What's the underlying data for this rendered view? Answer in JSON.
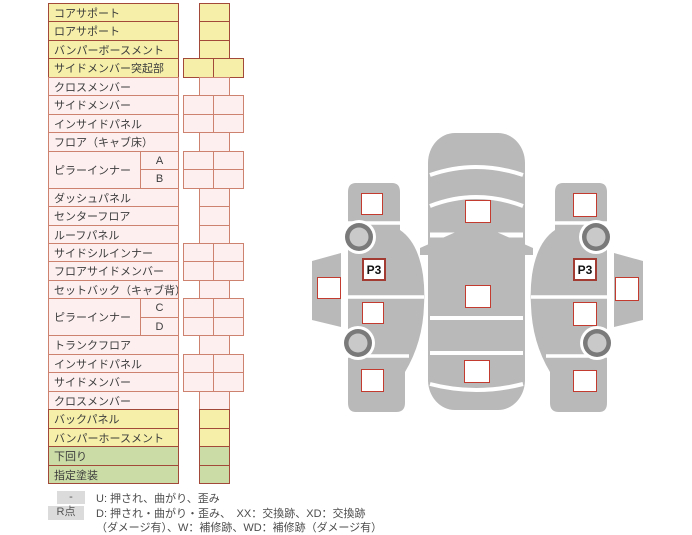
{
  "colors": {
    "yellow": "#f6efa9",
    "pink": "#fdeff0",
    "green": "#cbdca6",
    "border_dark": "#a3493a",
    "border_light": "#cd8270",
    "box_red": "#c23b2e",
    "car_gray": "#b9b9b9",
    "wheel_ring": "#7a7a7a",
    "wheel_hub": "#c9c9c9"
  },
  "table": {
    "rows": [
      {
        "label": "コアサポート",
        "color": "yellow",
        "cells": "single"
      },
      {
        "label": "ロアサポート",
        "color": "yellow",
        "cells": "single"
      },
      {
        "label": "バンパーボースメント",
        "color": "yellow",
        "cells": "single"
      },
      {
        "label": "サイドメンバー突起部",
        "color": "yellow",
        "cells": "double"
      },
      {
        "label": "クロスメンバー",
        "color": "pink",
        "cells": "single"
      },
      {
        "label": "サイドメンバー",
        "color": "pink",
        "cells": "double"
      },
      {
        "label": "インサイドパネル",
        "color": "pink",
        "cells": "double"
      },
      {
        "label": "フロア（キャブ床）",
        "color": "pink",
        "cells": "single"
      },
      {
        "label": "ピラーインナー",
        "labelSpan": 2,
        "sub": "A",
        "color": "pink",
        "cells": "double"
      },
      {
        "label": null,
        "sub": "B",
        "color": "pink",
        "cells": "double"
      },
      {
        "label": "ダッシュパネル",
        "color": "pink",
        "cells": "single"
      },
      {
        "label": "センターフロア",
        "color": "pink",
        "cells": "single"
      },
      {
        "label": "ルーフパネル",
        "color": "pink",
        "cells": "single"
      },
      {
        "label": "サイドシルインナー",
        "color": "pink",
        "cells": "double"
      },
      {
        "label": "フロアサイドメンバー",
        "color": "pink",
        "cells": "double"
      },
      {
        "label": "セットバック（キャブ背）",
        "color": "pink",
        "cells": "single"
      },
      {
        "label": "ピラーインナー",
        "labelSpan": 2,
        "sub": "C",
        "color": "pink",
        "cells": "double"
      },
      {
        "label": null,
        "sub": "D",
        "color": "pink",
        "cells": "double"
      },
      {
        "label": "トランクフロア",
        "color": "pink",
        "cells": "single"
      },
      {
        "label": "インサイドパネル",
        "color": "pink",
        "cells": "double"
      },
      {
        "label": "サイドメンバー",
        "color": "pink",
        "cells": "double"
      },
      {
        "label": "クロスメンバー",
        "color": "pink",
        "cells": "single"
      },
      {
        "label": "バックパネル",
        "color": "yellow",
        "cells": "single"
      },
      {
        "label": "バンパーホースメント",
        "color": "yellow",
        "cells": "single"
      },
      {
        "label": "下回り",
        "color": "green",
        "cells": "single"
      },
      {
        "label": "指定塗装",
        "color": "green",
        "cells": "single"
      }
    ]
  },
  "diagram": {
    "p3_markers": [
      {
        "id": "left-side",
        "label": "P3"
      },
      {
        "id": "right-side",
        "label": "P3"
      }
    ],
    "checkpoints": [
      {
        "id": "ls-front"
      },
      {
        "id": "ls-rocker"
      },
      {
        "id": "ls-mid"
      },
      {
        "id": "ls-rear"
      },
      {
        "id": "top-front"
      },
      {
        "id": "top-center"
      },
      {
        "id": "top-rear"
      },
      {
        "id": "rs-front"
      },
      {
        "id": "rs-rocker"
      },
      {
        "id": "rs-mid"
      },
      {
        "id": "rs-rear"
      }
    ]
  },
  "legend": {
    "line1_badge": "-",
    "line1_text": "U: 押され、曲がり、歪み",
    "line2_badge": "R点",
    "line2_text": "D: 押され・曲がり・歪み、　XX：交換跡、XD：交換跡",
    "line3_text": "（ダメージ有）、W：補修跡、WD：補修跡（ダメージ有）"
  }
}
